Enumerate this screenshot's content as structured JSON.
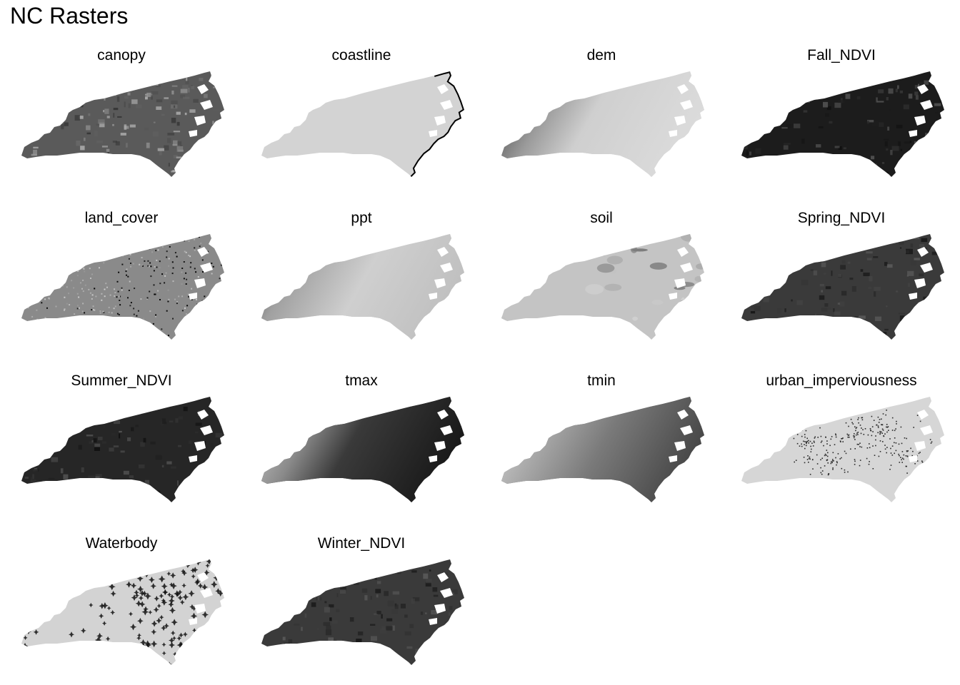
{
  "title": "NC Rasters",
  "panels": [
    {
      "label": "canopy",
      "tone": "#5a5a5a",
      "fill": "texture-dark"
    },
    {
      "label": "coastline",
      "tone": "#d3d3d3",
      "fill": "coastline"
    },
    {
      "label": "dem",
      "tone": "#cfcfcf",
      "fill": "gradient-west-dark"
    },
    {
      "label": "Fall_NDVI",
      "tone": "#1c1c1c",
      "fill": "dark"
    },
    {
      "label": "land_cover",
      "tone": "#8a8a8a",
      "fill": "speckle"
    },
    {
      "label": "ppt",
      "tone": "#c8c8c8",
      "fill": "gradient-west-dark-soft"
    },
    {
      "label": "soil",
      "tone": "#c4c4c4",
      "fill": "patches"
    },
    {
      "label": "Spring_NDVI",
      "tone": "#3a3a3a",
      "fill": "dark-mid"
    },
    {
      "label": "Summer_NDVI",
      "tone": "#262626",
      "fill": "dark"
    },
    {
      "label": "tmax",
      "tone": "#303030",
      "fill": "gradient-west-light"
    },
    {
      "label": "tmin",
      "tone": "#6e6e6e",
      "fill": "gradient-west-light-mid"
    },
    {
      "label": "urban_imperviousness",
      "tone": "#d6d6d6",
      "fill": "urban"
    },
    {
      "label": "Waterbody",
      "tone": "#d3d3d3",
      "fill": "waterbody"
    },
    {
      "label": "Winter_NDVI",
      "tone": "#3a3a3a",
      "fill": "dark-mid"
    }
  ]
}
